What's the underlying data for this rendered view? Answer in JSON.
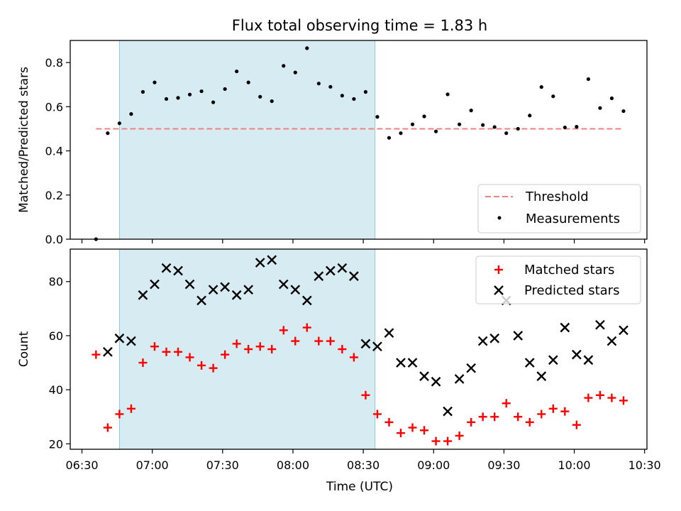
{
  "chart_data": [
    {
      "type": "scatter",
      "title": "Flux total observing time = 1.83 h",
      "ylabel": "Matched/Predicted stars",
      "xlabel": "",
      "ylim": [
        0,
        0.9
      ],
      "yticks": [
        "0.0",
        "0.2",
        "0.4",
        "0.6",
        "0.8"
      ],
      "shaded_span": [
        "06:46",
        "08:35"
      ],
      "legend_position": "lower-right",
      "threshold": {
        "name": "Threshold",
        "value": 0.5,
        "x_range": [
          "06:36",
          "10:21"
        ],
        "color": "#f08080"
      },
      "series": [
        {
          "name": "Measurements",
          "color": "#000000",
          "x": [
            "06:36",
            "06:41",
            "06:46",
            "06:51",
            "06:56",
            "07:01",
            "07:06",
            "07:11",
            "07:16",
            "07:21",
            "07:26",
            "07:31",
            "07:36",
            "07:41",
            "07:46",
            "07:51",
            "07:56",
            "08:01",
            "08:06",
            "08:11",
            "08:16",
            "08:21",
            "08:26",
            "08:31",
            "08:36",
            "08:41",
            "08:46",
            "08:51",
            "08:56",
            "09:01",
            "09:06",
            "09:11",
            "09:16",
            "09:21",
            "09:26",
            "09:31",
            "09:36",
            "09:41",
            "09:46",
            "09:51",
            "09:56",
            "10:01",
            "10:06",
            "10:11",
            "10:16",
            "10:21"
          ],
          "values": [
            0.0,
            0.48,
            0.525,
            0.567,
            0.667,
            0.71,
            0.635,
            0.64,
            0.655,
            0.67,
            0.62,
            0.68,
            0.76,
            0.71,
            0.645,
            0.625,
            0.785,
            0.755,
            0.865,
            0.705,
            0.69,
            0.65,
            0.635,
            0.667,
            0.554,
            0.459,
            0.48,
            0.52,
            0.556,
            0.488,
            0.656,
            0.52,
            0.583,
            0.517,
            0.508,
            0.48,
            0.5,
            0.56,
            0.689,
            0.647,
            0.506,
            0.509,
            0.725,
            0.594,
            0.638,
            0.58
          ]
        }
      ]
    },
    {
      "type": "scatter",
      "title": "",
      "ylabel": "Count",
      "xlabel": "Time (UTC)",
      "ylim": [
        18,
        92
      ],
      "yticks": [
        "20",
        "40",
        "60",
        "80"
      ],
      "xlim": [
        "06:25",
        "10:31"
      ],
      "xticks": [
        "06:30",
        "07:00",
        "07:30",
        "08:00",
        "08:30",
        "09:00",
        "09:30",
        "10:00",
        "10:30"
      ],
      "shaded_span": [
        "06:46",
        "08:35"
      ],
      "legend_position": "top-right",
      "series": [
        {
          "name": "Matched stars",
          "marker": "plus",
          "color": "#ff0000",
          "x": [
            "06:36",
            "06:41",
            "06:46",
            "06:51",
            "06:56",
            "07:01",
            "07:06",
            "07:11",
            "07:16",
            "07:21",
            "07:26",
            "07:31",
            "07:36",
            "07:41",
            "07:46",
            "07:51",
            "07:56",
            "08:01",
            "08:06",
            "08:11",
            "08:16",
            "08:21",
            "08:26",
            "08:31",
            "08:36",
            "08:41",
            "08:46",
            "08:51",
            "08:56",
            "09:01",
            "09:06",
            "09:11",
            "09:16",
            "09:21",
            "09:26",
            "09:31",
            "09:36",
            "09:41",
            "09:46",
            "09:51",
            "09:56",
            "10:01",
            "10:06",
            "10:11",
            "10:16",
            "10:21"
          ],
          "values": [
            53,
            26,
            31,
            33,
            50,
            56,
            54,
            54,
            52,
            49,
            48,
            53,
            57,
            55,
            56,
            55,
            62,
            58,
            63,
            58,
            58,
            55,
            52,
            38,
            31,
            28,
            24,
            26,
            25,
            21,
            21,
            23,
            28,
            30,
            30,
            35,
            30,
            28,
            31,
            33,
            32,
            27,
            37,
            38,
            37,
            36
          ]
        },
        {
          "name": "Predicted stars",
          "marker": "x",
          "color": "#000000",
          "x": [
            "06:41",
            "06:46",
            "06:51",
            "06:56",
            "07:01",
            "07:06",
            "07:11",
            "07:16",
            "07:21",
            "07:26",
            "07:31",
            "07:36",
            "07:41",
            "07:46",
            "07:51",
            "07:56",
            "08:01",
            "08:06",
            "08:11",
            "08:16",
            "08:21",
            "08:26",
            "08:31",
            "08:36",
            "08:41",
            "08:46",
            "08:51",
            "08:56",
            "09:01",
            "09:06",
            "09:11",
            "09:16",
            "09:21",
            "09:26",
            "09:31",
            "09:36",
            "09:41",
            "09:46",
            "09:51",
            "09:56",
            "10:01",
            "10:06",
            "10:11",
            "10:16",
            "10:21"
          ],
          "values": [
            54,
            59,
            58,
            75,
            79,
            85,
            84,
            79,
            73,
            77,
            78,
            75,
            77,
            87,
            88,
            79,
            77,
            73,
            82,
            84,
            85,
            82,
            57,
            56,
            61,
            50,
            50,
            45,
            43,
            32,
            44,
            48,
            58,
            59,
            73,
            60,
            50,
            45,
            51,
            63,
            53,
            51,
            64,
            58,
            62
          ]
        }
      ]
    }
  ]
}
